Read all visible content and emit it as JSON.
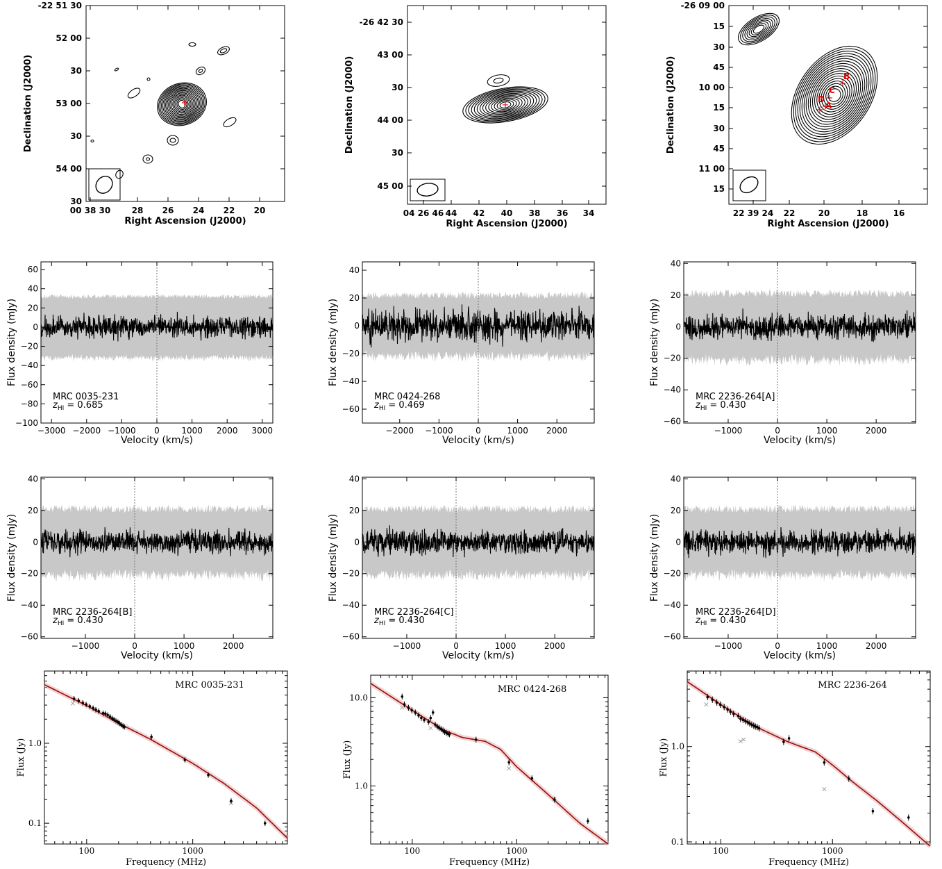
{
  "chart_data": [
    {
      "type": "contour",
      "ylabel": "Declination (J2000)",
      "xlabel": "Right Ascension (J2000)",
      "x_ticks": [
        "00 38 30",
        "28",
        "26",
        "24",
        "22",
        "20"
      ],
      "y_ticks": [
        "-22 51 30",
        "52 00",
        "30",
        "53 00",
        "30",
        "54 00",
        "30"
      ],
      "markers": []
    },
    {
      "type": "contour",
      "ylabel": "Declination (J2000)",
      "xlabel": "Right Ascension (J2000)",
      "x_ticks": [
        "04 26 46",
        "44",
        "42",
        "40",
        "38",
        "36",
        "34"
      ],
      "y_ticks": [
        "-26 42 30",
        "43 00",
        "30",
        "44 00",
        "30",
        "45 00"
      ],
      "markers": []
    },
    {
      "type": "contour",
      "ylabel": "Declination (J2000)",
      "xlabel": "Right Ascension (J2000)",
      "x_ticks": [
        "22 39 24",
        "22",
        "20",
        "18",
        "16"
      ],
      "y_ticks": [
        "-26 09 00",
        "15",
        "30",
        "45",
        "10 00",
        "15",
        "30",
        "45",
        "11 00",
        "15"
      ],
      "markers": [
        "A",
        "B",
        "C",
        "D"
      ]
    },
    {
      "type": "line",
      "xlabel": "Velocity (km/s)",
      "ylabel": "Flux density (mJy)",
      "source": "MRC 0035-231",
      "redshift_label": "z",
      "redshift_sub": "HI",
      "redshift_value": "= 0.685",
      "xlim": [
        -3300,
        3300
      ],
      "ylim": [
        -100,
        68
      ],
      "x_ticks": [
        -3000,
        -2000,
        -1000,
        0,
        1000,
        2000,
        3000
      ],
      "y_ticks": [
        -100,
        -80,
        -60,
        -40,
        -20,
        0,
        20,
        40,
        60
      ],
      "noise_rms": 6,
      "envelope": 32
    },
    {
      "type": "line",
      "xlabel": "Velocity (km/s)",
      "ylabel": "Flux density (mJy)",
      "source": "MRC 0424-268",
      "redshift_label": "z",
      "redshift_sub": "HI",
      "redshift_value": "= 0.469",
      "xlim": [
        -2950,
        2950
      ],
      "ylim": [
        -70,
        46
      ],
      "x_ticks": [
        -2000,
        -1000,
        0,
        1000,
        2000
      ],
      "y_ticks": [
        -60,
        -40,
        -20,
        0,
        20,
        40
      ],
      "noise_rms": 6,
      "envelope": 22
    },
    {
      "type": "line",
      "xlabel": "Velocity (km/s)",
      "ylabel": "Flux density (mJy)",
      "source": "MRC 2236-264[A]",
      "redshift_label": "z",
      "redshift_sub": "HI",
      "redshift_value": "= 0.430",
      "xlim": [
        -1900,
        2800
      ],
      "ylim": [
        -61,
        41
      ],
      "x_ticks": [
        -1000,
        0,
        1000,
        2000
      ],
      "y_ticks": [
        -60,
        -40,
        -20,
        0,
        20,
        40
      ],
      "noise_rms": 4,
      "envelope": 21
    },
    {
      "type": "line",
      "xlabel": "Velocity (km/s)",
      "ylabel": "Flux density (mJy)",
      "source": "MRC 2236-264[B]",
      "redshift_label": "z",
      "redshift_sub": "HI",
      "redshift_value": "= 0.430",
      "xlim": [
        -1900,
        2800
      ],
      "ylim": [
        -61,
        41
      ],
      "x_ticks": [
        -1000,
        0,
        1000,
        2000
      ],
      "y_ticks": [
        -60,
        -40,
        -20,
        0,
        20,
        40
      ],
      "noise_rms": 4,
      "envelope": 21
    },
    {
      "type": "line",
      "xlabel": "Velocity (km/s)",
      "ylabel": "Flux density (mJy)",
      "source": "MRC 2236-264[C]",
      "redshift_label": "z",
      "redshift_sub": "HI",
      "redshift_value": "= 0.430",
      "xlim": [
        -1900,
        2800
      ],
      "ylim": [
        -61,
        41
      ],
      "x_ticks": [
        -1000,
        0,
        1000,
        2000
      ],
      "y_ticks": [
        -60,
        -40,
        -20,
        0,
        20,
        40
      ],
      "noise_rms": 4,
      "envelope": 21
    },
    {
      "type": "line",
      "xlabel": "Velocity (km/s)",
      "ylabel": "Flux density (mJy)",
      "source": "MRC 2236-264[D]",
      "redshift_label": "z",
      "redshift_sub": "HI",
      "redshift_value": "= 0.430",
      "xlim": [
        -1900,
        2800
      ],
      "ylim": [
        -61,
        41
      ],
      "x_ticks": [
        -1000,
        0,
        1000,
        2000
      ],
      "y_ticks": [
        -60,
        -40,
        -20,
        0,
        20,
        40
      ],
      "noise_rms": 4,
      "envelope": 21
    },
    {
      "type": "scatter",
      "title": "MRC 0035-231",
      "xlabel": "Frequency (MHz)",
      "ylabel": "Flux (Jy)",
      "xscale": "log",
      "yscale": "log",
      "xlim": [
        40,
        7800
      ],
      "ylim": [
        0.055,
        8
      ],
      "x_ticks": [
        100,
        1000
      ],
      "y_ticks": [
        0.1,
        1.0
      ],
      "y_tick_labels": [
        "0.1",
        "1.0"
      ],
      "points": [
        [
          76,
          3.6
        ],
        [
          84,
          3.4
        ],
        [
          92,
          3.2
        ],
        [
          99,
          3.05
        ],
        [
          107,
          2.9
        ],
        [
          115,
          2.75
        ],
        [
          122,
          2.62
        ],
        [
          130,
          2.52
        ],
        [
          143,
          2.38
        ],
        [
          150,
          2.35
        ],
        [
          158,
          2.25
        ],
        [
          166,
          2.15
        ],
        [
          174,
          2.05
        ],
        [
          181,
          1.98
        ],
        [
          189,
          1.9
        ],
        [
          197,
          1.84
        ],
        [
          204,
          1.77
        ],
        [
          212,
          1.7
        ],
        [
          220,
          1.64
        ],
        [
          227,
          1.6
        ],
        [
          408,
          1.2
        ],
        [
          843,
          0.62
        ],
        [
          1400,
          0.4
        ],
        [
          2300,
          0.19
        ],
        [
          4800,
          0.1
        ]
      ],
      "outliers": [
        [
          74,
          3.2
        ],
        [
          150,
          2.3
        ],
        [
          2300,
          0.18
        ]
      ],
      "model": [
        [
          40,
          5.4
        ],
        [
          100,
          2.95
        ],
        [
          200,
          1.78
        ],
        [
          400,
          1.12
        ],
        [
          1000,
          0.56
        ],
        [
          2000,
          0.31
        ],
        [
          4000,
          0.155
        ],
        [
          7800,
          0.065
        ]
      ]
    },
    {
      "type": "scatter",
      "title": "MRC 0424-268",
      "xlabel": "Frequency (MHz)",
      "ylabel": "Flux (Jy)",
      "xscale": "log",
      "yscale": "log",
      "xlim": [
        40,
        7500
      ],
      "ylim": [
        0.22,
        18
      ],
      "x_ticks": [
        100,
        1000
      ],
      "y_ticks": [
        1.0,
        10.0
      ],
      "y_tick_labels": [
        "1.0",
        "10.0"
      ],
      "points": [
        [
          80,
          10.3
        ],
        [
          84,
          8.4
        ],
        [
          92,
          7.7
        ],
        [
          99,
          7.2
        ],
        [
          107,
          6.8
        ],
        [
          115,
          6.3
        ],
        [
          122,
          5.9
        ],
        [
          130,
          5.6
        ],
        [
          143,
          5.3
        ],
        [
          150,
          5.9
        ],
        [
          158,
          6.8
        ],
        [
          166,
          4.95
        ],
        [
          174,
          4.7
        ],
        [
          181,
          4.55
        ],
        [
          189,
          4.4
        ],
        [
          197,
          4.25
        ],
        [
          204,
          4.1
        ],
        [
          212,
          4.0
        ],
        [
          220,
          3.9
        ],
        [
          227,
          3.85
        ],
        [
          408,
          3.35
        ],
        [
          843,
          1.85
        ],
        [
          1400,
          1.22
        ],
        [
          2300,
          0.7
        ],
        [
          4800,
          0.4
        ]
      ],
      "outliers": [
        [
          80,
          7.8
        ],
        [
          150,
          4.6
        ],
        [
          843,
          1.6
        ],
        [
          2300,
          0.72
        ]
      ],
      "model": [
        [
          40,
          14.5
        ],
        [
          100,
          7.2
        ],
        [
          200,
          4.3
        ],
        [
          300,
          3.55
        ],
        [
          400,
          3.35
        ],
        [
          500,
          3.2
        ],
        [
          700,
          2.6
        ],
        [
          1000,
          1.65
        ],
        [
          2000,
          0.8
        ],
        [
          4000,
          0.38
        ],
        [
          7500,
          0.22
        ]
      ]
    },
    {
      "type": "scatter",
      "title": "MRC 2236-264",
      "xlabel": "Frequency (MHz)",
      "ylabel": "Flux (Jy)",
      "xscale": "log",
      "yscale": "log",
      "xlim": [
        50,
        7500
      ],
      "ylim": [
        0.095,
        6.2
      ],
      "x_ticks": [
        100,
        1000
      ],
      "y_ticks": [
        0.1,
        1.0
      ],
      "y_tick_labels": [
        "0.1",
        "1.0"
      ],
      "points": [
        [
          76,
          3.3
        ],
        [
          84,
          3.1
        ],
        [
          92,
          2.9
        ],
        [
          99,
          2.75
        ],
        [
          107,
          2.6
        ],
        [
          115,
          2.45
        ],
        [
          122,
          2.32
        ],
        [
          130,
          2.2
        ],
        [
          143,
          2.1
        ],
        [
          150,
          1.95
        ],
        [
          158,
          1.9
        ],
        [
          166,
          1.85
        ],
        [
          174,
          1.8
        ],
        [
          181,
          1.75
        ],
        [
          189,
          1.7
        ],
        [
          197,
          1.66
        ],
        [
          204,
          1.62
        ],
        [
          212,
          1.6
        ],
        [
          220,
          1.55
        ],
        [
          365,
          1.12
        ],
        [
          408,
          1.22
        ],
        [
          843,
          0.68
        ],
        [
          1400,
          0.46
        ],
        [
          2300,
          0.21
        ],
        [
          4800,
          0.18
        ]
      ],
      "outliers": [
        [
          74,
          2.8
        ],
        [
          150,
          1.15
        ],
        [
          160,
          1.2
        ],
        [
          843,
          0.36
        ]
      ],
      "model": [
        [
          50,
          4.8
        ],
        [
          100,
          2.75
        ],
        [
          200,
          1.64
        ],
        [
          400,
          1.12
        ],
        [
          700,
          0.88
        ],
        [
          1000,
          0.64
        ],
        [
          1500,
          0.43
        ],
        [
          2500,
          0.27
        ],
        [
          4000,
          0.17
        ],
        [
          7500,
          0.09
        ]
      ]
    }
  ]
}
